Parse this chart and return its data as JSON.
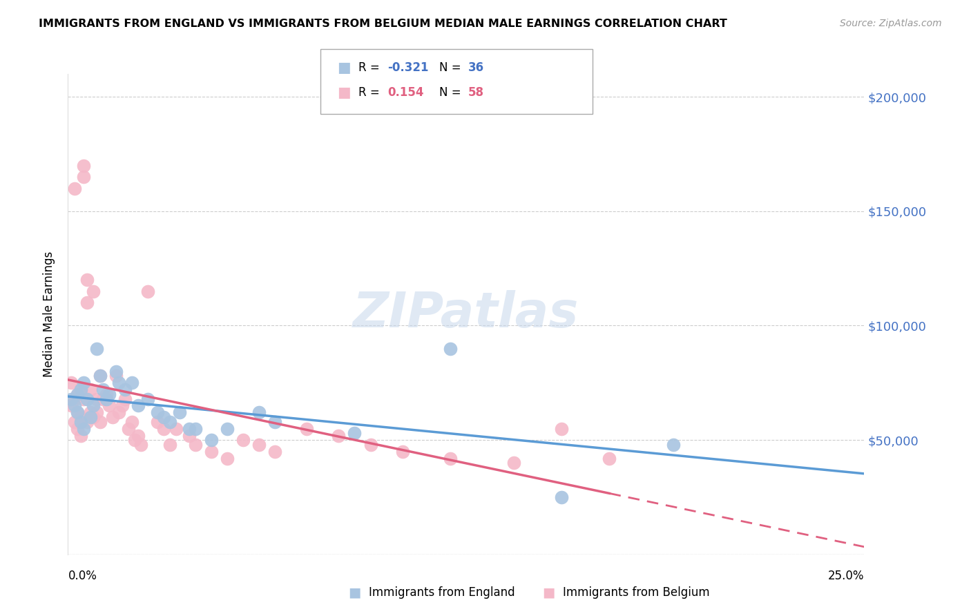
{
  "title": "IMMIGRANTS FROM ENGLAND VS IMMIGRANTS FROM BELGIUM MEDIAN MALE EARNINGS CORRELATION CHART",
  "source": "Source: ZipAtlas.com",
  "ylabel": "Median Male Earnings",
  "yticks": [
    0,
    50000,
    100000,
    150000,
    200000
  ],
  "ytick_labels": [
    "",
    "$50,000",
    "$100,000",
    "$150,000",
    "$200,000"
  ],
  "xmin": 0.0,
  "xmax": 0.25,
  "ymin": 0,
  "ymax": 210000,
  "england_color": "#a8c4e0",
  "england_color_dark": "#5b9bd5",
  "belgium_color": "#f4b8c8",
  "belgium_color_dark": "#e06080",
  "england_R": -0.321,
  "england_N": 36,
  "belgium_R": 0.154,
  "belgium_N": 58,
  "watermark": "ZIPatlas",
  "england_x": [
    0.001,
    0.002,
    0.003,
    0.003,
    0.004,
    0.004,
    0.005,
    0.005,
    0.006,
    0.007,
    0.008,
    0.009,
    0.01,
    0.011,
    0.012,
    0.013,
    0.015,
    0.016,
    0.018,
    0.02,
    0.022,
    0.025,
    0.028,
    0.03,
    0.032,
    0.035,
    0.038,
    0.04,
    0.045,
    0.05,
    0.06,
    0.065,
    0.09,
    0.12,
    0.155,
    0.19
  ],
  "england_y": [
    68000,
    65000,
    70000,
    62000,
    72000,
    58000,
    75000,
    55000,
    68000,
    60000,
    65000,
    90000,
    78000,
    72000,
    68000,
    70000,
    80000,
    75000,
    72000,
    75000,
    65000,
    68000,
    62000,
    60000,
    58000,
    62000,
    55000,
    55000,
    50000,
    55000,
    62000,
    58000,
    53000,
    90000,
    25000,
    48000
  ],
  "belgium_x": [
    0.001,
    0.001,
    0.002,
    0.002,
    0.002,
    0.003,
    0.003,
    0.003,
    0.004,
    0.004,
    0.004,
    0.005,
    0.005,
    0.005,
    0.006,
    0.006,
    0.006,
    0.007,
    0.007,
    0.008,
    0.008,
    0.009,
    0.009,
    0.01,
    0.01,
    0.011,
    0.012,
    0.013,
    0.014,
    0.015,
    0.016,
    0.017,
    0.018,
    0.019,
    0.02,
    0.021,
    0.022,
    0.023,
    0.025,
    0.028,
    0.03,
    0.032,
    0.034,
    0.038,
    0.04,
    0.045,
    0.05,
    0.055,
    0.06,
    0.065,
    0.075,
    0.085,
    0.095,
    0.105,
    0.12,
    0.14,
    0.155,
    0.17
  ],
  "belgium_y": [
    75000,
    65000,
    160000,
    68000,
    58000,
    70000,
    62000,
    55000,
    72000,
    60000,
    52000,
    170000,
    165000,
    68000,
    120000,
    110000,
    58000,
    72000,
    62000,
    115000,
    60000,
    68000,
    62000,
    78000,
    58000,
    68000,
    70000,
    65000,
    60000,
    78000,
    62000,
    65000,
    68000,
    55000,
    58000,
    50000,
    52000,
    48000,
    115000,
    58000,
    55000,
    48000,
    55000,
    52000,
    48000,
    45000,
    42000,
    50000,
    48000,
    45000,
    55000,
    52000,
    48000,
    45000,
    42000,
    40000,
    55000,
    42000
  ]
}
